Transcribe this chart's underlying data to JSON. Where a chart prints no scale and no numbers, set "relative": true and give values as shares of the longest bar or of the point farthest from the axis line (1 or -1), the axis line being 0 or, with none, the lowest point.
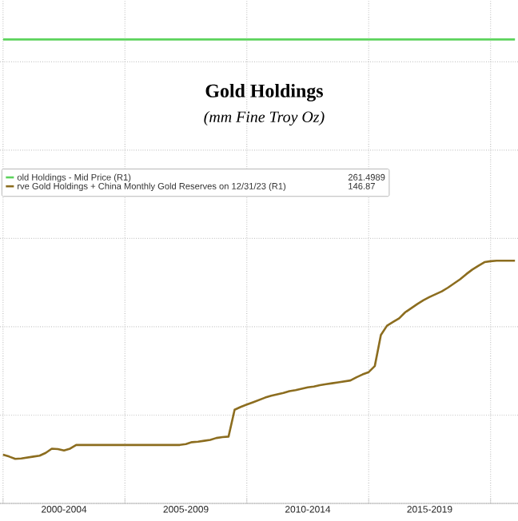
{
  "chart_data": {
    "type": "line",
    "title": "Gold Holdings",
    "subtitle": "(mm Fine Troy Oz)",
    "relative": true,
    "categories": [
      null,
      null,
      null,
      null,
      null,
      null,
      null,
      null,
      null,
      null,
      "2000-2004",
      null,
      null,
      null,
      null,
      null,
      null,
      null,
      null,
      null,
      null,
      null,
      null,
      null,
      null,
      null,
      null,
      null,
      null,
      null,
      "2005-2009",
      null,
      null,
      null,
      null,
      null,
      null,
      null,
      null,
      null,
      null,
      null,
      null,
      null,
      null,
      null,
      null,
      null,
      null,
      null,
      "2010-2014",
      null,
      null,
      null,
      null,
      null,
      null,
      null,
      null,
      null,
      null,
      null,
      null,
      null,
      null,
      null,
      null,
      null,
      null,
      null,
      "2015-2019",
      null,
      null,
      null,
      null,
      null,
      null,
      null,
      null,
      null,
      null,
      null,
      null,
      null,
      null
    ],
    "tick_labels": "x",
    "grid": true,
    "legend": "top left",
    "annotations": [
      "261.4989",
      "146.87"
    ],
    "series": [
      {
        "name": "old Holdings - Mid Price (R1)",
        "color": "#5cd35c",
        "values": [
          1,
          1,
          1,
          1,
          1,
          1,
          1,
          1,
          1,
          1,
          1,
          1,
          1,
          1,
          1,
          1,
          1,
          1,
          1,
          1,
          1,
          1,
          1,
          1,
          1,
          1,
          1,
          1,
          1,
          1,
          1,
          1,
          1,
          1,
          1,
          1,
          1,
          1,
          1,
          1,
          1,
          1,
          1,
          1,
          1,
          1,
          1,
          1,
          1,
          1,
          1,
          1,
          1,
          1,
          1,
          1,
          1,
          1,
          1,
          1,
          1,
          1,
          1,
          1,
          1,
          1,
          1,
          1,
          1,
          1,
          1,
          1,
          1,
          1,
          1,
          1,
          1,
          1,
          1,
          1,
          1,
          1,
          1,
          1,
          1
        ]
      },
      {
        "name": "rve Gold Holdings + China Monthly Gold Reserves on 12/31/23 (R1)",
        "color": "#8c6d1f",
        "values": [
          0.105,
          0.101,
          0.096,
          0.097,
          0.099,
          0.101,
          0.103,
          0.109,
          0.118,
          0.117,
          0.114,
          0.118,
          0.126,
          0.126,
          0.126,
          0.126,
          0.126,
          0.126,
          0.126,
          0.126,
          0.126,
          0.126,
          0.126,
          0.126,
          0.126,
          0.126,
          0.126,
          0.126,
          0.126,
          0.126,
          0.128,
          0.132,
          0.133,
          0.135,
          0.137,
          0.141,
          0.143,
          0.144,
          0.202,
          0.208,
          0.213,
          0.218,
          0.223,
          0.228,
          0.232,
          0.235,
          0.238,
          0.242,
          0.244,
          0.247,
          0.25,
          0.252,
          0.255,
          0.257,
          0.259,
          0.261,
          0.263,
          0.265,
          0.272,
          0.278,
          0.283,
          0.296,
          0.363,
          0.383,
          0.391,
          0.399,
          0.412,
          0.421,
          0.43,
          0.438,
          0.445,
          0.451,
          0.457,
          0.465,
          0.474,
          0.483,
          0.494,
          0.504,
          0.512,
          0.52,
          0.522,
          0.523,
          0.523,
          0.523,
          0.523
        ]
      }
    ]
  }
}
